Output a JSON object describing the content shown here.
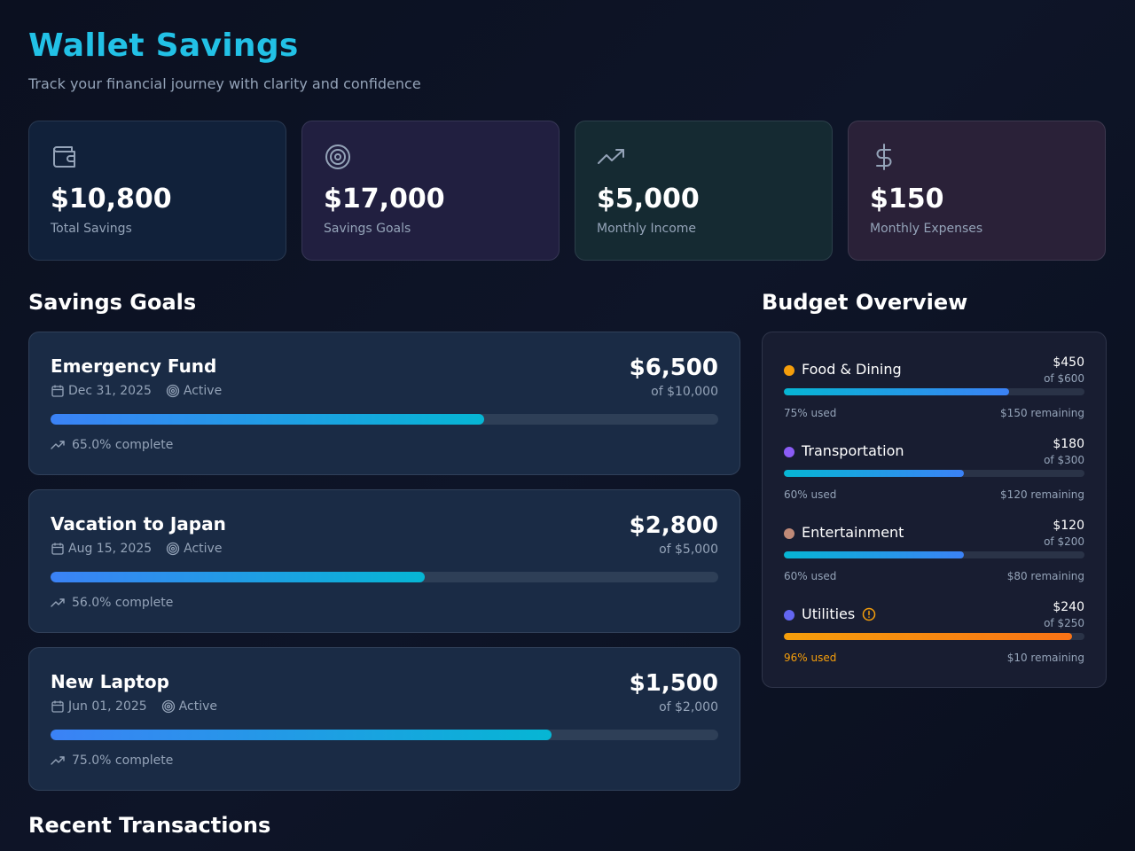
{
  "header": {
    "title": "Wallet Savings",
    "subtitle": "Track your financial journey with clarity and confidence"
  },
  "stats": [
    {
      "icon": "wallet-icon",
      "value": "$10,800",
      "label": "Total Savings"
    },
    {
      "icon": "target-icon",
      "value": "$17,000",
      "label": "Savings Goals"
    },
    {
      "icon": "trending-up-icon",
      "value": "$5,000",
      "label": "Monthly Income"
    },
    {
      "icon": "dollar-icon",
      "value": "$150",
      "label": "Monthly Expenses"
    }
  ],
  "goals_section": {
    "title": "Savings Goals",
    "goals": [
      {
        "name": "Emergency Fund",
        "date": "Dec 31, 2025",
        "status": "Active",
        "amount": "$6,500",
        "target": "of $10,000",
        "progress": 0.65,
        "progress_label": "65.0% complete"
      },
      {
        "name": "Vacation to Japan",
        "date": "Aug 15, 2025",
        "status": "Active",
        "amount": "$2,800",
        "target": "of $5,000",
        "progress": 0.56,
        "progress_label": "56.0% complete"
      },
      {
        "name": "New Laptop",
        "date": "Jun 01, 2025",
        "status": "Active",
        "amount": "$1,500",
        "target": "of $2,000",
        "progress": 0.75,
        "progress_label": "75.0% complete"
      }
    ]
  },
  "budget_section": {
    "title": "Budget Overview",
    "items": [
      {
        "name": "Food & Dining",
        "dot_color": "#f59e0b",
        "amount": "$450",
        "limit": "of $600",
        "used_fraction": 0.75,
        "used_label": "75% used",
        "remaining": "$150 remaining",
        "warning": false
      },
      {
        "name": "Transportation",
        "dot_color": "#8b5cf6",
        "amount": "$180",
        "limit": "of $300",
        "used_fraction": 0.6,
        "used_label": "60% used",
        "remaining": "$120 remaining",
        "warning": false
      },
      {
        "name": "Entertainment",
        "dot_color": "#c08a78",
        "amount": "$120",
        "limit": "of $200",
        "used_fraction": 0.6,
        "used_label": "60% used",
        "remaining": "$80 remaining",
        "warning": false
      },
      {
        "name": "Utilities",
        "dot_color": "#6366f1",
        "amount": "$240",
        "limit": "of $250",
        "used_fraction": 0.96,
        "used_label": "96% used",
        "remaining": "$10 remaining",
        "warning": true
      }
    ]
  },
  "transactions_section": {
    "title": "Recent Transactions"
  },
  "colors": {
    "accent": "#22c1e6",
    "warning": "#f59e0b"
  }
}
